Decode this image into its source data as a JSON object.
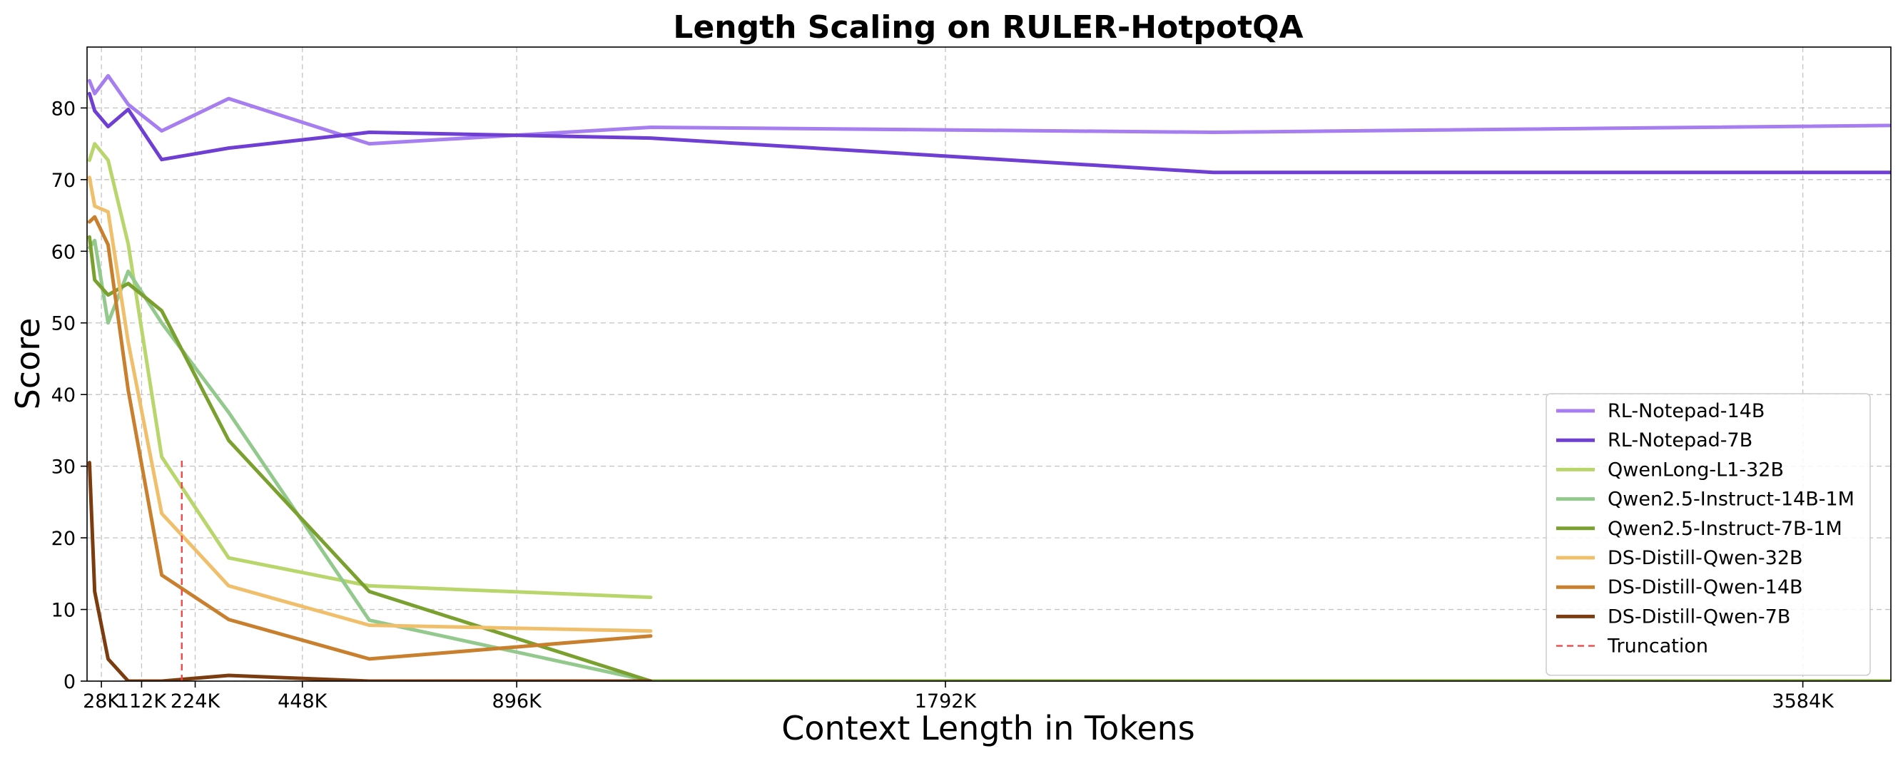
{
  "chart_data": {
    "type": "line",
    "title": "Length Scaling on RULER-HotpotQA",
    "xlabel": "Context Length in Tokens",
    "ylabel": "Score",
    "x_ticks": [
      {
        "value": 28,
        "label": "28K"
      },
      {
        "value": 112,
        "label": "112K"
      },
      {
        "value": 224,
        "label": "224K"
      },
      {
        "value": 448,
        "label": "448K"
      },
      {
        "value": 896,
        "label": "896K"
      },
      {
        "value": 1792,
        "label": "1792K"
      },
      {
        "value": 3584,
        "label": "3584K"
      }
    ],
    "y_ticks": [
      0,
      10,
      20,
      30,
      40,
      50,
      60,
      70,
      80
    ],
    "xlim": [
      -2,
      3768
    ],
    "ylim": [
      0,
      88.5
    ],
    "grid": true,
    "legend_position": "lower-right",
    "series": [
      {
        "name": "RL-Notepad-14B",
        "color": "#a67ef0",
        "x": [
          3,
          14,
          42,
          84,
          154,
          294,
          588,
          1176,
          2352,
          4704
        ],
        "y": [
          83.8,
          82.0,
          84.5,
          80.5,
          76.8,
          81.3,
          75.0,
          77.3,
          76.6,
          78.2
        ]
      },
      {
        "name": "RL-Notepad-7B",
        "color": "#6f3fd4",
        "x": [
          3,
          14,
          42,
          84,
          154,
          294,
          588,
          1176,
          2352,
          4704
        ],
        "y": [
          82.0,
          79.6,
          77.4,
          79.8,
          72.8,
          74.4,
          76.6,
          75.8,
          71.0,
          71.0
        ]
      },
      {
        "name": "QwenLong-L1-32B",
        "color": "#b8d66b",
        "x": [
          3,
          14,
          42,
          84,
          154,
          294,
          588,
          1176
        ],
        "y": [
          72.7,
          75.0,
          72.7,
          61.0,
          31.3,
          17.2,
          13.3,
          11.7
        ]
      },
      {
        "name": "Qwen2.5-Instruct-14B-1M",
        "color": "#94c98e",
        "x": [
          3,
          14,
          42,
          84,
          154,
          294,
          588,
          1176,
          2352,
          4704
        ],
        "y": [
          60.5,
          61.5,
          50.0,
          57.2,
          50.0,
          37.5,
          8.5,
          0.0,
          0.0,
          0.0
        ]
      },
      {
        "name": "Qwen2.5-Instruct-7B-1M",
        "color": "#7aa12f",
        "x": [
          3,
          14,
          42,
          84,
          154,
          294,
          588,
          1176,
          2352,
          4704
        ],
        "y": [
          62.0,
          56.0,
          53.9,
          55.5,
          51.7,
          33.6,
          12.5,
          0.0,
          0.0,
          0.0
        ]
      },
      {
        "name": "DS-Distill-Qwen-32B",
        "color": "#f0bf6c",
        "x": [
          3,
          14,
          42,
          84,
          154,
          294,
          588,
          1176
        ],
        "y": [
          70.3,
          66.3,
          65.5,
          47.3,
          23.4,
          13.3,
          7.8,
          7.0
        ]
      },
      {
        "name": "DS-Distill-Qwen-14B",
        "color": "#c8802e",
        "x": [
          3,
          14,
          42,
          84,
          154,
          294,
          588,
          1176
        ],
        "y": [
          64.1,
          64.8,
          60.9,
          40.6,
          14.8,
          8.6,
          3.1,
          6.3
        ]
      },
      {
        "name": "DS-Distill-Qwen-7B",
        "color": "#7b3d0f",
        "x": [
          3,
          14,
          42,
          84,
          154,
          294,
          588,
          1176
        ],
        "y": [
          30.5,
          12.5,
          3.1,
          0.0,
          0.0,
          0.8,
          0.0,
          0.0
        ]
      }
    ],
    "truncation": {
      "name": "Truncation",
      "color": "#f04848",
      "x": 196,
      "y": [
        0,
        31
      ]
    }
  }
}
